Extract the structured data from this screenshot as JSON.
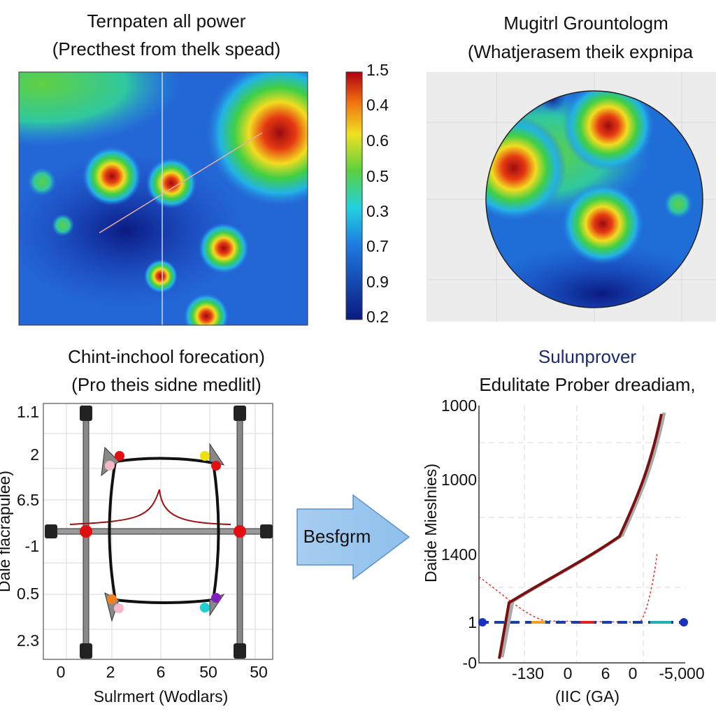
{
  "panel_1": {
    "title": [
      "Ternpaten all power",
      "(Precthest from thelk spead)"
    ],
    "colorbar_labels": [
      "1.5",
      "0.4",
      "0.6",
      "0.5",
      "0.3",
      "0.7",
      "0.9",
      "0.2"
    ]
  },
  "panel_2": {
    "title": [
      "Mugitrl Grountologm",
      "(Whatjerasem theik expnipa"
    ]
  },
  "panel_3": {
    "title": [
      "Chint-inchool forecation)",
      "(Pro theis sidne medlitl)"
    ],
    "y_labels": [
      "1.1",
      "2",
      "6.5",
      "-1",
      "0.5",
      "2.3"
    ],
    "x_labels": [
      "0",
      "2",
      "6",
      "50",
      "50"
    ],
    "x_title": "Sulrmert (Wodlars)",
    "y_title": "Dale flacrapulee)"
  },
  "arrow": {
    "label": "Besfgrm"
  },
  "panel_4": {
    "title": [
      "Sulunprover",
      "Edulitate Prober dreadiam,"
    ],
    "y_labels": [
      "1000",
      "1000",
      "1400",
      "1",
      "-0"
    ],
    "x_labels": [
      "-130",
      "0",
      "6",
      "0",
      "-5,000"
    ],
    "x_title": "(IIC (GA)",
    "y_title": "Daide Mieslnies)"
  }
}
